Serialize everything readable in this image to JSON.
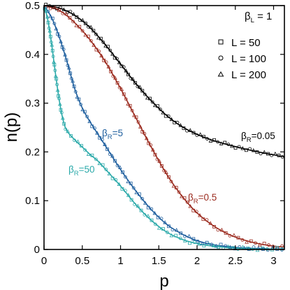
{
  "chart_data": {
    "type": "line",
    "title": "",
    "xlabel": "p",
    "ylabel": "n(p)",
    "xlim": [
      0,
      3.14159
    ],
    "ylim": [
      0,
      0.5
    ],
    "xticks": [
      "0",
      "0.5",
      "1",
      "1.5",
      "2",
      "2.5",
      "3"
    ],
    "yticks": [
      "0",
      "0.1",
      "0.2",
      "0.3",
      "0.4",
      "0.5"
    ],
    "grid": false,
    "legend_position": "top-right",
    "fixed_parameter": {
      "symbol": "β",
      "subscript": "L",
      "suffix": " = 1"
    },
    "markers": [
      {
        "label": "L = 50",
        "marker": "square"
      },
      {
        "label": "L = 100",
        "marker": "circle"
      },
      {
        "label": "L = 200",
        "marker": "triangle"
      }
    ],
    "series": [
      {
        "annotation": {
          "symbol": "β",
          "subscript": "R",
          "suffix": "=0.05"
        },
        "color": "#000000",
        "x": [
          0,
          0.2,
          0.4,
          0.6,
          0.8,
          1.0,
          1.2,
          1.4,
          1.6,
          1.8,
          2.0,
          2.2,
          2.4,
          2.6,
          2.8,
          3.0,
          3.14
        ],
        "y": [
          0.5,
          0.495,
          0.48,
          0.455,
          0.42,
          0.38,
          0.34,
          0.305,
          0.275,
          0.252,
          0.236,
          0.224,
          0.215,
          0.207,
          0.2,
          0.194,
          0.19
        ]
      },
      {
        "annotation": {
          "symbol": "β",
          "subscript": "R",
          "suffix": "=0.5"
        },
        "color": "#9b2a1e",
        "x": [
          0,
          0.2,
          0.4,
          0.6,
          0.8,
          1.0,
          1.2,
          1.4,
          1.6,
          1.8,
          2.0,
          2.2,
          2.4,
          2.6,
          2.8,
          3.0,
          3.14
        ],
        "y": [
          0.5,
          0.49,
          0.465,
          0.43,
          0.385,
          0.33,
          0.27,
          0.21,
          0.155,
          0.11,
          0.075,
          0.05,
          0.032,
          0.02,
          0.012,
          0.007,
          0.005
        ]
      },
      {
        "annotation": {
          "symbol": "β",
          "subscript": "R",
          "suffix": "=5"
        },
        "color": "#1f5f9e",
        "x": [
          0,
          0.1,
          0.2,
          0.3,
          0.4,
          0.5,
          0.6,
          0.8,
          1.0,
          1.2,
          1.4,
          1.6,
          1.8,
          2.0,
          2.2,
          2.4,
          2.6,
          2.8,
          3.0,
          3.14
        ],
        "y": [
          0.5,
          0.475,
          0.435,
          0.385,
          0.33,
          0.29,
          0.262,
          0.213,
          0.164,
          0.12,
          0.082,
          0.052,
          0.032,
          0.018,
          0.01,
          0.006,
          0.003,
          0.002,
          0.001,
          0.001
        ]
      },
      {
        "annotation": {
          "symbol": "β",
          "subscript": "R",
          "suffix": "=50"
        },
        "color": "#2aa9a9",
        "x": [
          0,
          0.05,
          0.1,
          0.15,
          0.2,
          0.25,
          0.3,
          0.4,
          0.5,
          0.6,
          0.7,
          0.8,
          1.0,
          1.2,
          1.4,
          1.6,
          1.8,
          2.0,
          2.2,
          2.4,
          2.6,
          2.8,
          3.0,
          3.14
        ],
        "y": [
          0.5,
          0.47,
          0.42,
          0.36,
          0.305,
          0.265,
          0.243,
          0.225,
          0.21,
          0.195,
          0.182,
          0.165,
          0.13,
          0.092,
          0.06,
          0.036,
          0.021,
          0.012,
          0.007,
          0.004,
          0.002,
          0.001,
          0.001,
          0.0
        ]
      }
    ]
  }
}
